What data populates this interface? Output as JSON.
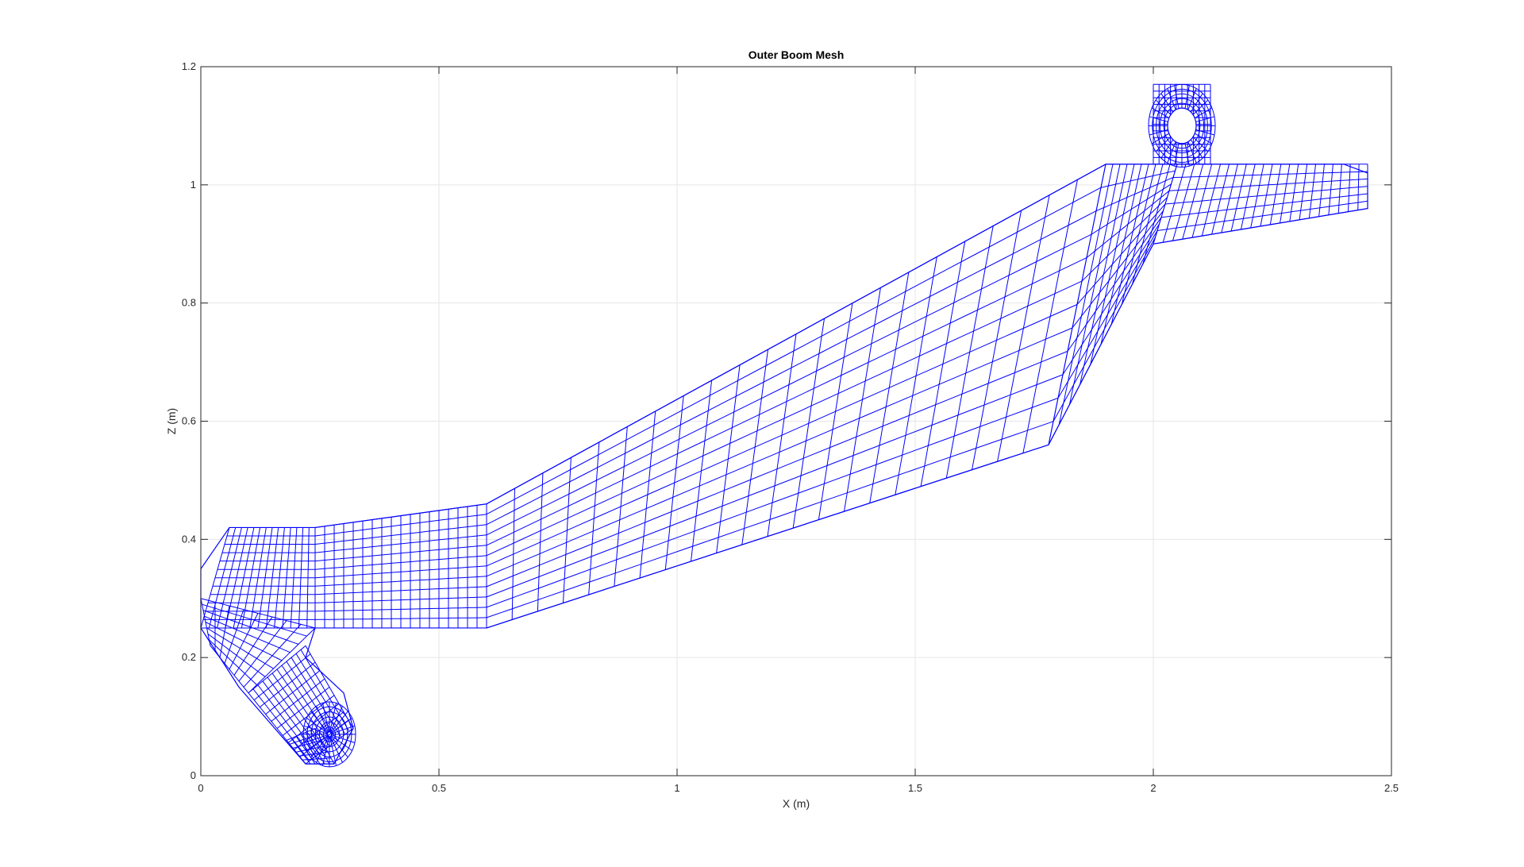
{
  "chart_data": {
    "type": "mesh",
    "title": "Outer Boom Mesh",
    "xlabel": "X (m)",
    "ylabel": "Z (m)",
    "xlim": [
      0,
      2.5
    ],
    "ylim": [
      0,
      1.2
    ],
    "xticks": [
      "0",
      "0.5",
      "1",
      "1.5",
      "2",
      "2.5"
    ],
    "xtick_values": [
      0,
      0.5,
      1,
      1.5,
      2,
      2.5
    ],
    "yticks": [
      "0",
      "0.2",
      "0.4",
      "0.6",
      "0.8",
      "1",
      "1.2"
    ],
    "ytick_values": [
      0,
      0.2,
      0.4,
      0.6,
      0.8,
      1.0,
      1.2
    ],
    "grid": true,
    "mesh_color": "#0000ff",
    "outline": [
      [
        0.22,
        0.02
      ],
      [
        0.28,
        0.02
      ],
      [
        0.32,
        0.08
      ],
      [
        0.3,
        0.14
      ],
      [
        0.22,
        0.2
      ],
      [
        0.24,
        0.25
      ],
      [
        0.6,
        0.25
      ],
      [
        1.78,
        0.56
      ],
      [
        2.0,
        0.9
      ],
      [
        2.45,
        0.96
      ],
      [
        2.45,
        1.02
      ],
      [
        2.4,
        1.035
      ],
      [
        2.08,
        1.035
      ],
      [
        2.05,
        1.035
      ],
      [
        1.9,
        1.035
      ],
      [
        0.6,
        0.46
      ],
      [
        0.24,
        0.42
      ],
      [
        0.06,
        0.42
      ],
      [
        0.0,
        0.35
      ],
      [
        0.0,
        0.25
      ],
      [
        0.08,
        0.15
      ]
    ],
    "regions": [
      {
        "name": "lower-lug",
        "quad": [
          [
            0.1,
            0.14
          ],
          [
            0.22,
            0.02
          ],
          [
            0.32,
            0.08
          ],
          [
            0.22,
            0.22
          ]
        ],
        "nu": 10,
        "nv": 12
      },
      {
        "name": "lower-lug-tip",
        "quad": [
          [
            0.18,
            0.06
          ],
          [
            0.22,
            0.02
          ],
          [
            0.28,
            0.02
          ],
          [
            0.24,
            0.08
          ]
        ],
        "nu": 6,
        "nv": 6
      },
      {
        "name": "left-end",
        "quad": [
          [
            0.0,
            0.25
          ],
          [
            0.24,
            0.25
          ],
          [
            0.24,
            0.42
          ],
          [
            0.06,
            0.42
          ]
        ],
        "nu": 14,
        "nv": 12
      },
      {
        "name": "left-end-lower",
        "quad": [
          [
            0.02,
            0.22
          ],
          [
            0.1,
            0.14
          ],
          [
            0.24,
            0.25
          ],
          [
            0.0,
            0.3
          ]
        ],
        "nu": 8,
        "nv": 8
      },
      {
        "name": "lower-arm",
        "quad": [
          [
            0.24,
            0.25
          ],
          [
            0.6,
            0.25
          ],
          [
            0.6,
            0.46
          ],
          [
            0.24,
            0.42
          ]
        ],
        "nu": 18,
        "nv": 12
      },
      {
        "name": "main-boom",
        "quad": [
          [
            0.6,
            0.25
          ],
          [
            1.78,
            0.56
          ],
          [
            1.9,
            1.035
          ],
          [
            0.6,
            0.46
          ]
        ],
        "nu": 22,
        "nv": 12
      },
      {
        "name": "upper-joint",
        "quad": [
          [
            1.78,
            0.56
          ],
          [
            2.0,
            0.9
          ],
          [
            2.05,
            1.035
          ],
          [
            1.9,
            1.035
          ]
        ],
        "nu": 10,
        "nv": 12
      },
      {
        "name": "upper-arm",
        "quad": [
          [
            2.0,
            0.9
          ],
          [
            2.45,
            0.96
          ],
          [
            2.45,
            1.035
          ],
          [
            2.05,
            1.035
          ]
        ],
        "nu": 22,
        "nv": 6
      },
      {
        "name": "top-lug",
        "quad": [
          [
            2.0,
            1.035
          ],
          [
            2.12,
            1.035
          ],
          [
            2.12,
            1.17
          ],
          [
            2.0,
            1.17
          ]
        ],
        "nu": 10,
        "nv": 12
      }
    ]
  }
}
